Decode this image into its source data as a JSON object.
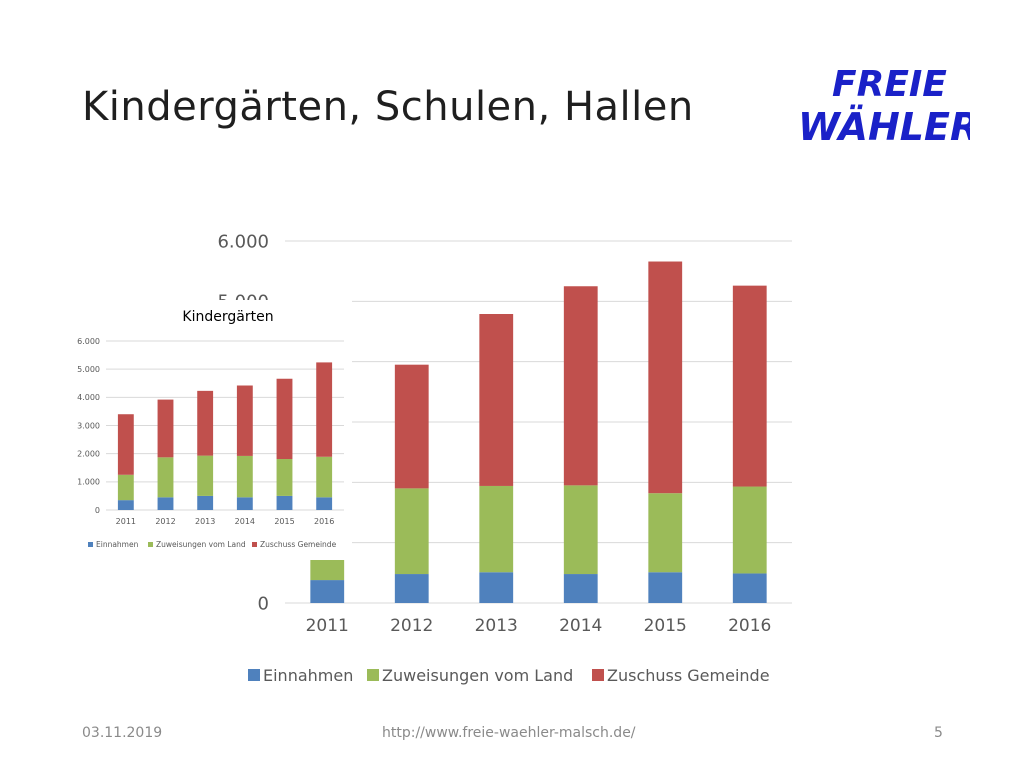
{
  "slide": {
    "title": "Kindergärten, Schulen, Hallen",
    "logo_line1": "FREIE",
    "logo_line2": "WÄHLER",
    "logo_color": "#1a21c8"
  },
  "footer": {
    "date": "03.11.2019",
    "url": "http://www.freie-waehler-malsch.de/",
    "page": "5"
  },
  "chart_data": [
    {
      "type": "bar",
      "stacked": true,
      "title": "",
      "categories": [
        "2011",
        "2012",
        "2013",
        "2014",
        "2015",
        "2016"
      ],
      "series": [
        {
          "name": "Einnahmen",
          "color": "#4f81bd",
          "values": [
            380,
            480,
            510,
            480,
            510,
            490
          ]
        },
        {
          "name": "Zuweisungen vom Land",
          "color": "#9bbb59",
          "values": [
            880,
            1420,
            1430,
            1470,
            1310,
            1440
          ]
        },
        {
          "name": "Zuschuss Gemeinde",
          "color": "#c0504d",
          "values": [
            2100,
            2050,
            2850,
            3300,
            3840,
            3330
          ]
        }
      ],
      "ylim": [
        0,
        6000
      ],
      "yticks": [
        "0",
        "1.000",
        "2.000",
        "3.000",
        "4.000",
        "5.000",
        "6.000"
      ],
      "grid": true,
      "legend": "bottom"
    },
    {
      "type": "bar",
      "stacked": true,
      "title": "Kindergärten",
      "categories": [
        "2011",
        "2012",
        "2013",
        "2014",
        "2015",
        "2016"
      ],
      "series": [
        {
          "name": "Einnahmen",
          "color": "#4f81bd",
          "values": [
            350,
            450,
            500,
            450,
            500,
            450
          ]
        },
        {
          "name": "Zuweisungen vom Land",
          "color": "#9bbb59",
          "values": [
            900,
            1420,
            1430,
            1470,
            1310,
            1440
          ]
        },
        {
          "name": "Zuschuss Gemeinde",
          "color": "#c0504d",
          "values": [
            2150,
            2050,
            2300,
            2500,
            2850,
            3350
          ]
        }
      ],
      "ylim": [
        0,
        6000
      ],
      "yticks": [
        "0",
        "1.000",
        "2.000",
        "3.000",
        "4.000",
        "5.000",
        "6.000"
      ],
      "grid": true,
      "legend": "bottom"
    }
  ]
}
